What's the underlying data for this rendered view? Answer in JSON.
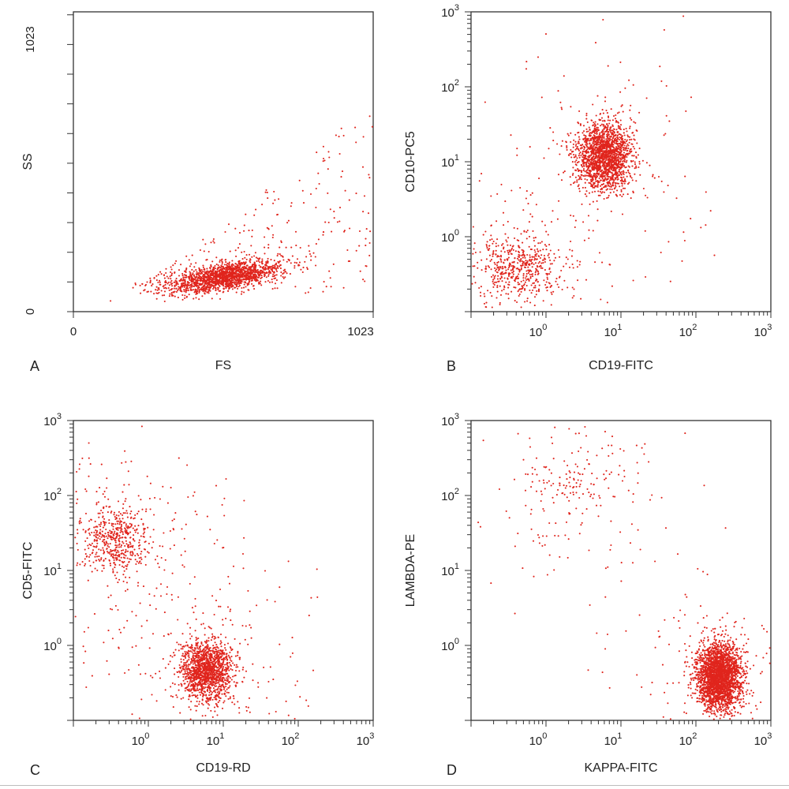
{
  "chart_data": [
    {
      "type": "scatter",
      "panel": "A",
      "xlabel": "FS",
      "ylabel": "SS",
      "xscale": "linear",
      "yscale": "linear",
      "xlim": [
        0,
        1023
      ],
      "ylim": [
        0,
        1023
      ],
      "x_tick_labels": [
        "0",
        "1023"
      ],
      "y_tick_labels": [
        "0",
        "1023"
      ],
      "clusters": [
        {
          "name": "main population",
          "x_center": 520,
          "y_center": 120,
          "x_spread": 95,
          "y_spread": 28,
          "count": 1700,
          "correlation": "positive"
        }
      ],
      "sparse_points": 260
    },
    {
      "type": "scatter",
      "panel": "B",
      "xlabel": "CD19-FITC",
      "ylabel": "CD10-PC5",
      "xscale": "log",
      "yscale": "log",
      "xlim": [
        0.1,
        1000
      ],
      "ylim": [
        0.1,
        1000
      ],
      "x_tick_labels": [
        "10",
        "10",
        "10",
        "10"
      ],
      "x_tick_exponents": [
        "0",
        "1",
        "2",
        "3"
      ],
      "y_tick_labels": [
        "10",
        "10",
        "10",
        "10"
      ],
      "y_tick_exponents": [
        "0",
        "1",
        "2",
        "3"
      ],
      "clusters": [
        {
          "name": "CD19+ CD10+",
          "x_center": 6,
          "y_center": 12,
          "x_spread_log10": 0.18,
          "y_spread_log10": 0.22,
          "count": 1800
        },
        {
          "name": "double negative",
          "x_center": 0.45,
          "y_center": 0.4,
          "x_spread_log10": 0.3,
          "y_spread_log10": 0.2,
          "count": 500
        }
      ],
      "sparse_points": 280
    },
    {
      "type": "scatter",
      "panel": "C",
      "xlabel": "CD19-RD",
      "ylabel": "CD5-FITC",
      "xscale": "log",
      "yscale": "log",
      "xlim": [
        0.1,
        1000
      ],
      "ylim": [
        0.1,
        1000
      ],
      "x_tick_labels": [
        "10",
        "10",
        "10",
        "10"
      ],
      "x_tick_exponents": [
        "0",
        "1",
        "2",
        "3"
      ],
      "y_tick_labels": [
        "10",
        "10",
        "10",
        "10"
      ],
      "y_tick_exponents": [
        "0",
        "1",
        "2",
        "3"
      ],
      "clusters": [
        {
          "name": "CD19+ CD5-",
          "x_center": 6,
          "y_center": 0.45,
          "x_spread_log10": 0.17,
          "y_spread_log10": 0.2,
          "count": 1400
        },
        {
          "name": "CD5+ T cells",
          "x_center": 0.35,
          "y_center": 25,
          "x_spread_log10": 0.22,
          "y_spread_log10": 0.22,
          "count": 450
        }
      ],
      "sparse_points": 450
    },
    {
      "type": "scatter",
      "panel": "D",
      "xlabel": "KAPPA-FITC",
      "ylabel": "LAMBDA-PE",
      "xscale": "log",
      "yscale": "log",
      "xlim": [
        0.1,
        1000
      ],
      "ylim": [
        0.1,
        1000
      ],
      "x_tick_labels": [
        "10",
        "10",
        "10",
        "10"
      ],
      "x_tick_exponents": [
        "0",
        "1",
        "2",
        "3"
      ],
      "y_tick_labels": [
        "10",
        "10",
        "10",
        "10"
      ],
      "y_tick_exponents": [
        "0",
        "1",
        "2",
        "3"
      ],
      "clusters": [
        {
          "name": "kappa+ population",
          "x_center": 200,
          "y_center": 0.38,
          "x_spread_log10": 0.15,
          "y_spread_log10": 0.22,
          "count": 2600
        },
        {
          "name": "lambda+ population",
          "x_center": 2,
          "y_center": 150,
          "x_spread_log10": 0.25,
          "y_spread_log10": 0.2,
          "count": 70
        }
      ],
      "sparse_points": 350
    }
  ]
}
